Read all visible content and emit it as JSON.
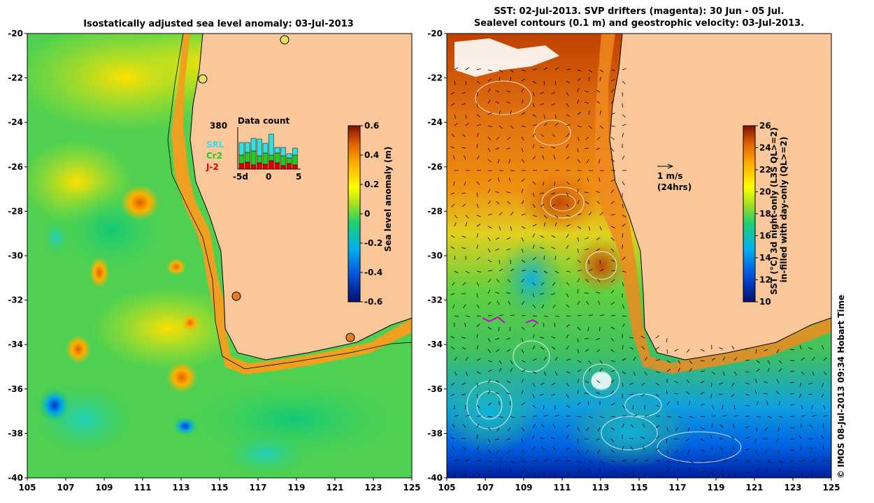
{
  "left_panel": {
    "title": "Isostatically adjusted sea level anomaly: 03-Jul-2013",
    "colorbar": {
      "label": "Sea level anomaly (m)",
      "ticks": [
        "0.6",
        "0.4",
        "0.2",
        "0",
        "-0.2",
        "-0.4",
        "-0.6"
      ],
      "range": [
        -0.6,
        0.6
      ]
    },
    "data_count": {
      "title": "Data count",
      "max_label": "380",
      "x_ticks": [
        "-5d",
        "0",
        "5"
      ],
      "legend": [
        {
          "label": "SRL",
          "color": "#33e0e0"
        },
        {
          "label": "Cr2",
          "color": "#22cc22"
        },
        {
          "label": "J-2",
          "color": "#dd0000"
        }
      ]
    }
  },
  "right_panel": {
    "title_line1": "SST: 02-Jul-2013. SVP drifters (magenta): 30 Jun - 05 Jul.",
    "title_line2": "Sealevel contours (0.1 m) and geostrophic velocity: 03-Jul-2013.",
    "scale_arrow_label1": "1 m/s",
    "scale_arrow_label2": "(24hrs)",
    "colorbar": {
      "label_line1": "SST (°C) 3d night-only (L3S QL>=2)",
      "label_line2": "in-filled with day-only (QL>=2)",
      "ticks": [
        "26",
        "24",
        "22",
        "20",
        "18",
        "16",
        "14",
        "12",
        "10"
      ],
      "range": [
        10,
        26
      ]
    }
  },
  "axes": {
    "y_ticks": [
      "-20",
      "-22",
      "-24",
      "-26",
      "-28",
      "-30",
      "-32",
      "-34",
      "-36",
      "-38",
      "-40"
    ],
    "x_ticks": [
      "105",
      "107",
      "109",
      "111",
      "113",
      "115",
      "117",
      "119",
      "121",
      "123",
      "125"
    ]
  },
  "credit": "© IMOS 08-Jul-2013 09:34 Hobart Time",
  "colors": {
    "land": "#f9c79a",
    "coastline": "#000000",
    "sla_colormap": [
      "#00106e",
      "#0050d8",
      "#00b0f0",
      "#20d070",
      "#a0e020",
      "#ffff00",
      "#ffb000",
      "#e06000",
      "#801000"
    ],
    "sst_colormap": [
      "#00106e",
      "#0050d8",
      "#00b0f0",
      "#20d070",
      "#a0e020",
      "#ffff00",
      "#ffb000",
      "#e06000",
      "#801000"
    ]
  }
}
